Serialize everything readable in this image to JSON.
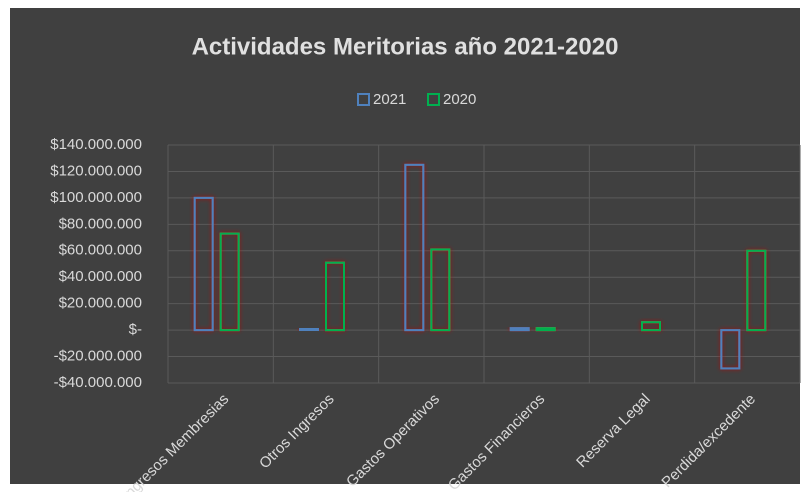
{
  "chart_data": {
    "type": "bar",
    "title": "Actividades Meritorias año 2021-2020",
    "categories": [
      "Ingresos Membresias",
      "Otros Ingresos",
      "Gastos Operativos",
      "Gastos Financieros",
      "Reserva Legal",
      "Perdida/excedente"
    ],
    "series": [
      {
        "name": "2021",
        "color": "#4f81bd",
        "values": [
          100000000,
          1000000,
          125000000,
          1500000,
          0,
          -29000000
        ]
      },
      {
        "name": "2020",
        "color": "#00b050",
        "values": [
          73000000,
          51000000,
          61000000,
          1500000,
          6000000,
          60000000
        ]
      }
    ],
    "ylim": [
      -40000000,
      140000000
    ],
    "yticks": [
      {
        "value": -40000000,
        "label": "-$40.000.000"
      },
      {
        "value": -20000000,
        "label": "-$20.000.000"
      },
      {
        "value": 0,
        "label": "$-"
      },
      {
        "value": 20000000,
        "label": "$20.000.000"
      },
      {
        "value": 40000000,
        "label": "$40.000.000"
      },
      {
        "value": 60000000,
        "label": "$60.000.000"
      },
      {
        "value": 80000000,
        "label": "$80.000.000"
      },
      {
        "value": 100000000,
        "label": "$100.000.000"
      },
      {
        "value": 120000000,
        "label": "$120.000.000"
      },
      {
        "value": 140000000,
        "label": "$140.000.000"
      }
    ],
    "grid": true,
    "legend": "top"
  }
}
